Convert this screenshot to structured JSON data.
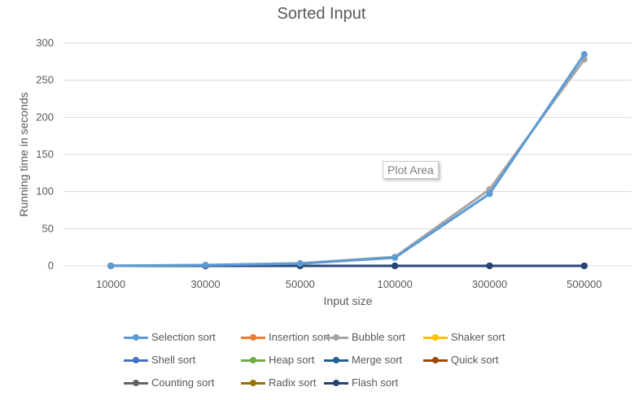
{
  "chart_data": {
    "type": "line",
    "title": "Sorted Input",
    "xlabel": "Input size",
    "ylabel": "Running time in seconds",
    "categories": [
      "10000",
      "30000",
      "50000",
      "100000",
      "300000",
      "500000"
    ],
    "ylim": [
      0,
      300
    ],
    "yticks": [
      "0",
      "50",
      "100",
      "150",
      "200",
      "250",
      "300"
    ],
    "grid": true,
    "legend_position": "bottom",
    "annotation": "Plot Area",
    "series": [
      {
        "name": "Selection sort",
        "color": "#5B9BD5",
        "values": [
          0.1,
          1,
          3,
          11,
          97,
          285
        ]
      },
      {
        "name": "Insertion sort",
        "color": "#ED7D31",
        "values": [
          0,
          0,
          0,
          0,
          0,
          0
        ]
      },
      {
        "name": "Bubble sort",
        "color": "#A5A5A5",
        "values": [
          0.1,
          1.2,
          3.5,
          12,
          103,
          278
        ]
      },
      {
        "name": "Shaker sort",
        "color": "#FFC000",
        "values": [
          0,
          0,
          0,
          0,
          0,
          0
        ]
      },
      {
        "name": "Shell sort",
        "color": "#4472C4",
        "values": [
          0,
          0,
          0,
          0,
          0,
          0
        ]
      },
      {
        "name": "Heap sort",
        "color": "#70AD47",
        "values": [
          0,
          0,
          0,
          0,
          0,
          0
        ]
      },
      {
        "name": "Merge sort",
        "color": "#255E91",
        "values": [
          0,
          0,
          0,
          0,
          0,
          0
        ]
      },
      {
        "name": "Quick sort",
        "color": "#9E480E",
        "values": [
          0,
          0,
          0,
          0,
          0,
          0
        ]
      },
      {
        "name": "Counting sort",
        "color": "#636363",
        "values": [
          0,
          0,
          0,
          0,
          0,
          0
        ]
      },
      {
        "name": "Radix sort",
        "color": "#997300",
        "values": [
          0,
          0,
          0,
          0,
          0,
          0
        ]
      },
      {
        "name": "Flash sort",
        "color": "#264478",
        "values": [
          0,
          0,
          0,
          0,
          0,
          0
        ]
      }
    ]
  }
}
